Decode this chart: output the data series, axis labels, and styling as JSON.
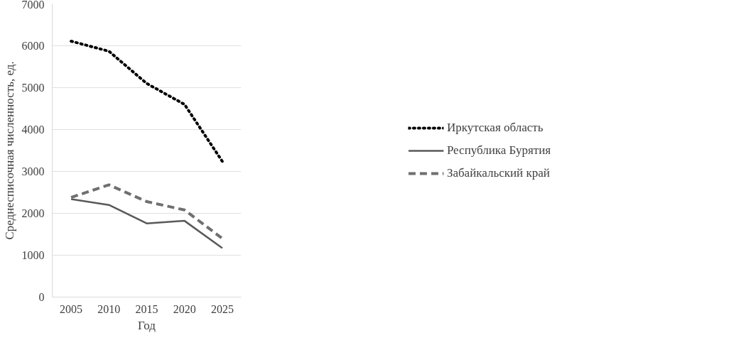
{
  "chart_data": {
    "type": "line",
    "xlabel": "Год",
    "ylabel": "Среднесписочная численность, ед.",
    "categories": [
      "2005",
      "2010",
      "2015",
      "2020",
      "2025"
    ],
    "series": [
      {
        "name": "Иркутская область",
        "color": "#000000",
        "line_style": "dotted",
        "values": [
          6110,
          5870,
          5100,
          4600,
          3240
        ]
      },
      {
        "name": "Республика Бурятия",
        "color": "#595959",
        "line_style": "solid",
        "values": [
          2340,
          2200,
          1760,
          1820,
          1170
        ]
      },
      {
        "name": "Забайкальский край",
        "color": "#6f6f6f",
        "line_style": "dashed",
        "values": [
          2380,
          2680,
          2280,
          2080,
          1400
        ]
      }
    ],
    "ylim": [
      0,
      7000
    ],
    "yticks": [
      0,
      1000,
      2000,
      3000,
      4000,
      5000,
      6000,
      7000
    ],
    "grid": "y",
    "legend": "right"
  }
}
